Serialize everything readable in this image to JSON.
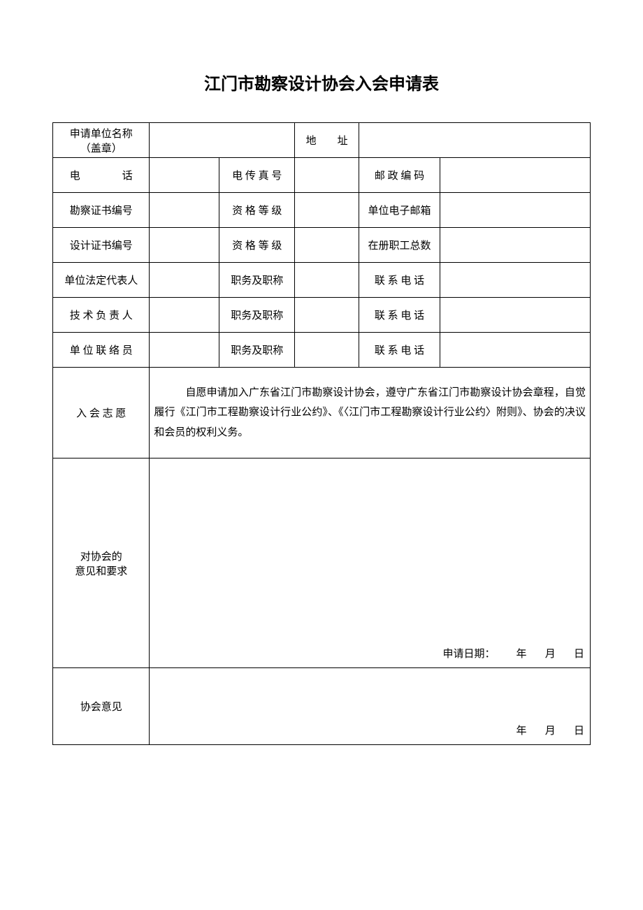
{
  "title": "江门市勘察设计协会入会申请表",
  "labels": {
    "unit_name": "申请单位名称",
    "unit_name_sub": "（盖章）",
    "address": "地　　址",
    "phone": "电　　　　话",
    "fax": "电 传 真 号",
    "postcode": "邮 政 编  码",
    "survey_cert": "勘察证书编号",
    "qual_level": "资 格 等 级",
    "unit_email": "单位电子邮箱",
    "design_cert": "设计证书编号",
    "staff_count": "在册职工总数",
    "legal_rep": "单位法定代表人",
    "position_title": "职务及职称",
    "contact_phone": "联 系 电 话",
    "tech_lead": "技 术 负 责 人",
    "unit_liaison": "单 位 联 络 员",
    "membership_wish": "入 会 志 愿",
    "opinion_header": "对协会的",
    "opinion_sub": "意见和要求",
    "assoc_opinion": "协会意见"
  },
  "texts": {
    "zhiyu": "自愿申请加入广东省江门市勘察设计协会，遵守广东省江门市勘察设计协会章程，自觉履行《江门市工程勘察设计行业公约》、《〈江门市工程勘察设计行业公约〉附则》、协会的决议和会员的权利义务。",
    "apply_date_prefix": "申请日期：",
    "year": "年",
    "month": "月",
    "day": "日"
  },
  "colors": {
    "background": "#ffffff",
    "border": "#000000",
    "text": "#000000"
  }
}
